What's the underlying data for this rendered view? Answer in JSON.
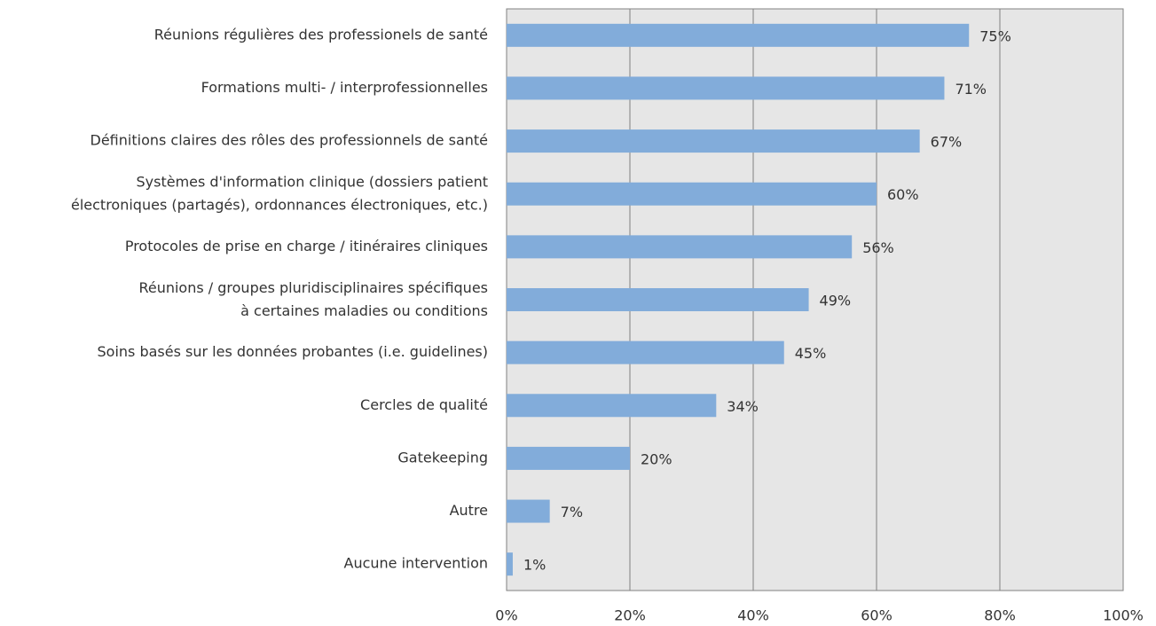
{
  "chart_data": {
    "type": "barh",
    "categories": [
      "Réunions régulières des professionels de santé",
      "Formations multi- / interprofessionnelles",
      "Définitions claires des rôles des professionnels de santé",
      "Systèmes d'information clinique (dossiers patient\nélectroniques (partagés), ordonnances électroniques, etc.)",
      "Protocoles de prise en charge / itinéraires cliniques",
      "Réunions / groupes pluridisciplinaires spécifiques\nà certaines maladies ou conditions",
      "Soins basés sur les données probantes (i.e. guidelines)",
      "Cercles de qualité",
      "Gatekeeping",
      "Autre",
      "Aucune intervention"
    ],
    "values": [
      75,
      71,
      67,
      60,
      56,
      49,
      45,
      34,
      20,
      7,
      1
    ],
    "value_labels": [
      "75%",
      "71%",
      "67%",
      "60%",
      "56%",
      "49%",
      "45%",
      "34%",
      "20%",
      "7%",
      "1%"
    ],
    "color": "#82acda",
    "xlim": [
      0,
      100
    ],
    "xticks": [
      {
        "value": 0,
        "label": "0%"
      },
      {
        "value": 20,
        "label": "20%"
      },
      {
        "value": 40,
        "label": "40%"
      },
      {
        "value": 60,
        "label": "60%"
      },
      {
        "value": 80,
        "label": "80%"
      },
      {
        "value": 100,
        "label": "100%"
      }
    ],
    "grid": true
  }
}
